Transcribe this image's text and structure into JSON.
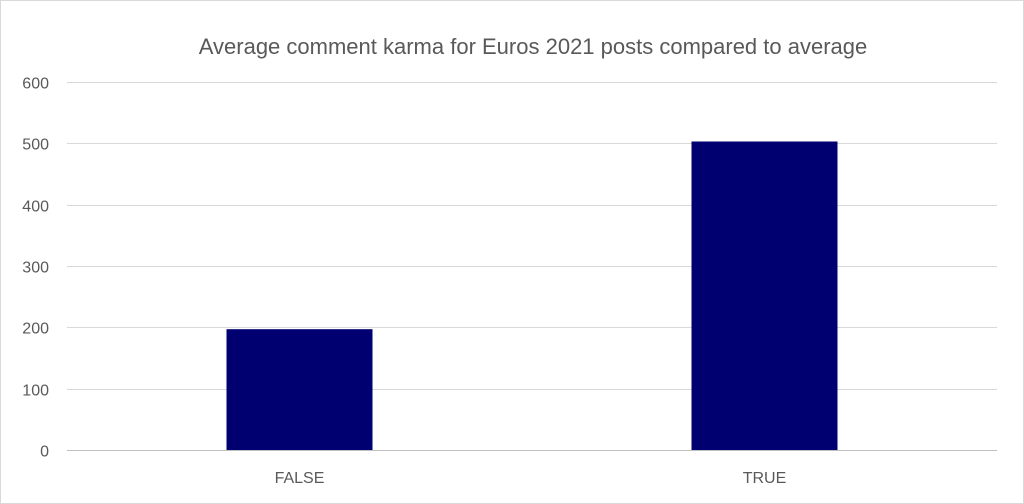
{
  "chart_data": {
    "type": "bar",
    "title": "Average comment karma for Euros 2021 posts compared to average",
    "xlabel": "",
    "ylabel": "",
    "categories": [
      "FALSE",
      "TRUE"
    ],
    "values": [
      197,
      503
    ],
    "ylim": [
      0,
      600
    ],
    "yticks": [
      0,
      100,
      200,
      300,
      400,
      500,
      600
    ],
    "grid": true,
    "legend": "none",
    "bar_color": "#000070"
  }
}
